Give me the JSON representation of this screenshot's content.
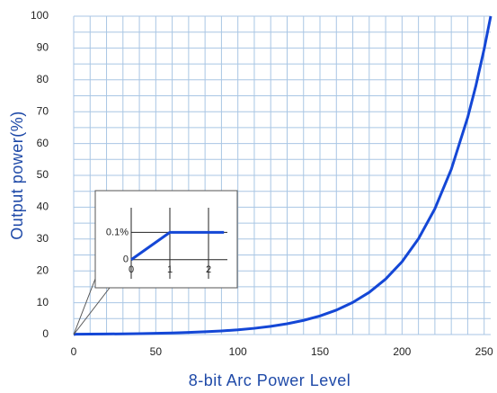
{
  "chart_data": [
    {
      "type": "line",
      "x_label": "8-bit Arc Power Level",
      "y_label": "Output power(%)",
      "x": [
        0,
        1,
        10,
        20,
        30,
        40,
        50,
        60,
        70,
        80,
        90,
        100,
        110,
        120,
        130,
        140,
        150,
        160,
        170,
        180,
        190,
        200,
        210,
        220,
        230,
        240,
        245,
        250,
        254
      ],
      "series": [
        {
          "color": "#1447d6",
          "values": [
            0,
            0.1,
            0.13,
            0.17,
            0.22,
            0.29,
            0.38,
            0.5,
            0.66,
            0.87,
            1.14,
            1.49,
            1.96,
            2.58,
            3.39,
            4.45,
            5.84,
            7.68,
            10.09,
            13.26,
            17.42,
            22.89,
            30.08,
            39.52,
            51.93,
            68.23,
            78.22,
            89.66,
            100
          ]
        }
      ],
      "xlim": [
        0,
        254
      ],
      "ylim": [
        0,
        100
      ],
      "xticks": [
        0,
        50,
        100,
        150,
        200,
        250
      ],
      "yticks": [
        0,
        10,
        20,
        30,
        40,
        50,
        60,
        70,
        80,
        90,
        100
      ],
      "x_grid": [
        0,
        10,
        20,
        30,
        40,
        50,
        60,
        70,
        80,
        90,
        100,
        110,
        120,
        130,
        140,
        150,
        160,
        170,
        180,
        190,
        200,
        210,
        220,
        230,
        240,
        250
      ],
      "y_grid": [
        0,
        5,
        10,
        15,
        20,
        25,
        30,
        35,
        40,
        45,
        50,
        55,
        60,
        65,
        70,
        75,
        80,
        85,
        90,
        95,
        100
      ],
      "grid_color": "#a9c6e4"
    },
    {
      "type": "line",
      "x": [
        0,
        1,
        2.4
      ],
      "series": [
        {
          "color": "#1447d6",
          "values": [
            0,
            0.1,
            0.1
          ]
        }
      ],
      "xlim": [
        0,
        2.5
      ],
      "ylim": [
        -0.07,
        0.19
      ],
      "xticks": [
        0,
        1,
        2
      ],
      "yticks": [
        0,
        {
          "value": 0.1,
          "label": "0.1%"
        }
      ],
      "grid": true,
      "grid_color": "#222222"
    }
  ]
}
